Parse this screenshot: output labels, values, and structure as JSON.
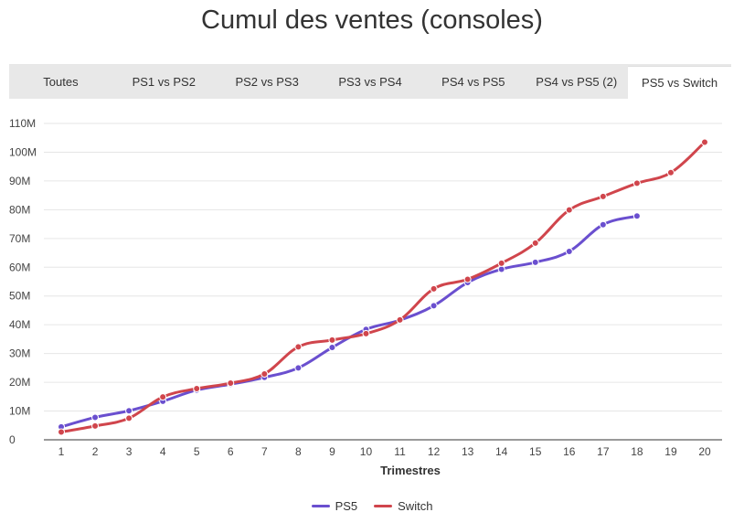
{
  "page": {
    "title": "Cumul des ventes (consoles)"
  },
  "tabs": [
    {
      "label": "Toutes",
      "active": false
    },
    {
      "label": "PS1 vs PS2",
      "active": false
    },
    {
      "label": "PS2 vs PS3",
      "active": false
    },
    {
      "label": "PS3 vs PS4",
      "active": false
    },
    {
      "label": "PS4 vs PS5",
      "active": false
    },
    {
      "label": "PS4 vs PS5 (2)",
      "active": false
    },
    {
      "label": "PS5 vs Switch",
      "active": true
    }
  ],
  "chart_data": {
    "type": "line",
    "title": "",
    "xlabel": "Trimestres",
    "ylabel": "",
    "x": [
      1,
      2,
      3,
      4,
      5,
      6,
      7,
      8,
      9,
      10,
      11,
      12,
      13,
      14,
      15,
      16,
      17,
      18,
      19,
      20
    ],
    "ylim": [
      0,
      110000000
    ],
    "yticks": [
      0,
      10000000,
      20000000,
      30000000,
      40000000,
      50000000,
      60000000,
      70000000,
      80000000,
      90000000,
      100000000,
      110000000
    ],
    "ytick_labels": [
      "0",
      "10M",
      "20M",
      "30M",
      "40M",
      "50M",
      "60M",
      "70M",
      "80M",
      "90M",
      "100M",
      "110M"
    ],
    "grid": true,
    "legend_position": "bottom",
    "series": [
      {
        "name": "PS5",
        "color": "#6a4fcf",
        "values": [
          4500000,
          7800000,
          10100000,
          13400000,
          17300000,
          19300000,
          21700000,
          25000000,
          32100000,
          38400000,
          41600000,
          46600000,
          54700000,
          59300000,
          61700000,
          65500000,
          74800000,
          77800000,
          null,
          null
        ]
      },
      {
        "name": "Switch",
        "color": "#d0454c",
        "values": [
          2700000,
          4800000,
          7500000,
          14900000,
          17800000,
          19700000,
          22900000,
          32300000,
          34700000,
          36900000,
          41700000,
          52500000,
          55800000,
          61400000,
          68400000,
          79900000,
          84600000,
          89200000,
          92900000,
          103500000
        ]
      }
    ]
  }
}
